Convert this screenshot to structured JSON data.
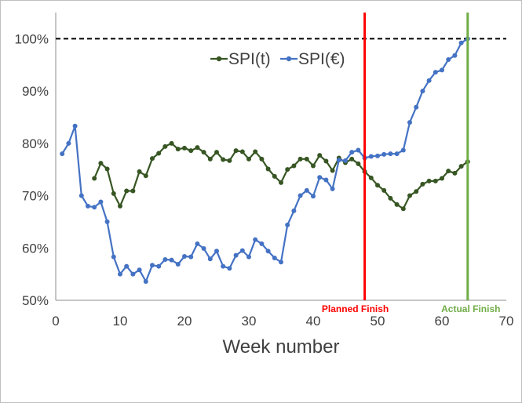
{
  "chart_data": {
    "type": "line",
    "title": "",
    "xlabel": "Week number",
    "ylabel": "",
    "xlim": [
      0,
      70
    ],
    "ylim": [
      50,
      105
    ],
    "x_ticks": [
      0,
      10,
      20,
      30,
      40,
      50,
      60,
      70
    ],
    "y_ticks": [
      50,
      60,
      70,
      80,
      90,
      100
    ],
    "y_tick_labels": [
      "50%",
      "60%",
      "70%",
      "80%",
      "90%",
      "100%"
    ],
    "grid": false,
    "legend": {
      "placement": "top-center"
    },
    "reference_line": {
      "y": 100,
      "style": "dashed",
      "color": "#000000"
    },
    "markers": [
      {
        "x": 48,
        "label": "Planned Finish",
        "color": "#ff0000"
      },
      {
        "x": 64,
        "label": "Actual Finish",
        "color": "#70ad47"
      }
    ],
    "series": [
      {
        "name": "SPI(t)",
        "color": "#375623",
        "x": [
          6,
          7,
          8,
          9,
          10,
          11,
          12,
          13,
          14,
          15,
          16,
          17,
          18,
          19,
          20,
          21,
          22,
          23,
          24,
          25,
          26,
          27,
          28,
          29,
          30,
          31,
          32,
          33,
          34,
          35,
          36,
          37,
          38,
          39,
          40,
          41,
          42,
          43,
          44,
          45,
          46,
          47,
          48,
          49,
          50,
          51,
          52,
          53,
          54,
          55,
          56,
          57,
          58,
          59,
          60,
          61,
          62,
          63,
          64
        ],
        "values": [
          73.3,
          76.2,
          75.1,
          70.4,
          68.0,
          70.9,
          70.9,
          74.6,
          73.8,
          77.1,
          78.1,
          79.4,
          80.0,
          78.9,
          79.1,
          78.6,
          79.2,
          78.3,
          77.0,
          78.3,
          76.9,
          76.7,
          78.6,
          78.4,
          77.0,
          78.4,
          77.0,
          75.1,
          73.7,
          72.5,
          75.0,
          75.7,
          77.0,
          77.0,
          75.7,
          77.7,
          76.6,
          74.8,
          77.2,
          76.3,
          77.0,
          76.1,
          74.6,
          73.4,
          72.0,
          71.0,
          69.5,
          68.3,
          67.5,
          70.0,
          70.8,
          72.2,
          72.8,
          72.8,
          73.3,
          74.7,
          74.3,
          75.6,
          76.5
        ]
      },
      {
        "name": "SPI(€)",
        "color": "#4472c4",
        "x": [
          1,
          2,
          3,
          4,
          5,
          6,
          7,
          8,
          9,
          10,
          11,
          12,
          13,
          14,
          15,
          16,
          17,
          18,
          19,
          20,
          21,
          22,
          23,
          24,
          25,
          26,
          27,
          28,
          29,
          30,
          31,
          32,
          33,
          34,
          35,
          36,
          37,
          38,
          39,
          40,
          41,
          42,
          43,
          44,
          45,
          46,
          47,
          48,
          49,
          50,
          51,
          52,
          53,
          54,
          55,
          56,
          57,
          58,
          59,
          60,
          61,
          62,
          63,
          64
        ],
        "values": [
          78.0,
          80.0,
          83.3,
          70.0,
          68.0,
          67.8,
          68.8,
          65.0,
          58.3,
          55.0,
          56.5,
          55.0,
          55.8,
          53.6,
          56.7,
          56.5,
          57.8,
          57.7,
          56.9,
          58.4,
          58.3,
          60.8,
          59.9,
          57.9,
          59.4,
          56.5,
          56.1,
          58.6,
          59.5,
          58.3,
          61.6,
          60.8,
          59.4,
          58.1,
          57.3,
          64.4,
          67.1,
          70.0,
          71.0,
          69.9,
          73.5,
          73.0,
          71.3,
          76.8,
          76.7,
          78.3,
          78.7,
          77.2,
          77.5,
          77.6,
          77.9,
          78.0,
          78.0,
          78.7,
          84.0,
          86.9,
          90.0,
          92.0,
          93.6,
          94.0,
          96.0,
          96.8,
          99.2,
          100.0
        ]
      }
    ]
  }
}
